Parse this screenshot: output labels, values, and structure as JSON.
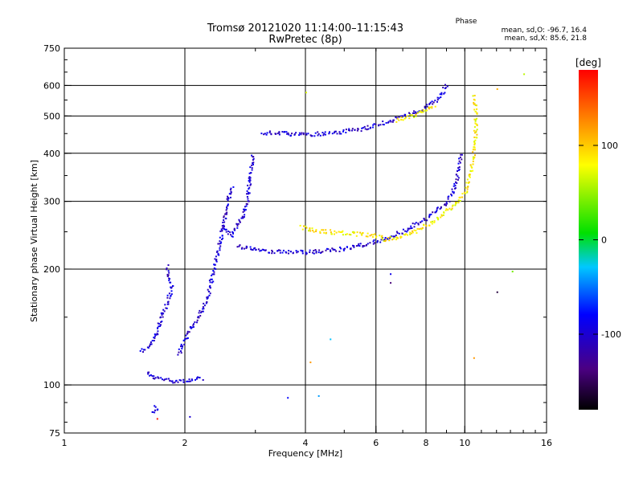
{
  "chart_data": {
    "type": "scatter",
    "title": "Tromsø 20121020 11:14:00–11:15:43",
    "subtitle": "RwPretec (8p)",
    "xlabel": "Frequency [MHz]",
    "ylabel": "Stationary phase Virtual Height [km]",
    "xscale": "log",
    "yscale": "log",
    "xlim": [
      1,
      16
    ],
    "ylim": [
      75,
      750
    ],
    "xticks": [
      1,
      2,
      4,
      6,
      8,
      10,
      16
    ],
    "yticks": [
      75,
      100,
      200,
      300,
      400,
      500,
      600,
      750
    ],
    "grid_x": [
      2,
      4,
      6,
      8,
      10
    ],
    "grid_y": [
      100,
      200,
      300,
      400,
      500,
      600
    ],
    "phase_stats": {
      "heading": "Phase",
      "o_line": "mean, sd,O: -96.7, 16.4",
      "x_line": "mean, sd,X:  85.6, 21.8"
    },
    "colorbar": {
      "label": "[deg]",
      "range": [
        -180,
        180
      ],
      "ticks": [
        100,
        0,
        -100
      ]
    },
    "traces": [
      {
        "mode": "O",
        "phase": -100,
        "points": [
          [
            1.65,
            85
          ],
          [
            1.68,
            88
          ],
          [
            1.72,
            86
          ]
        ]
      },
      {
        "mode": "O",
        "phase": -100,
        "points": [
          [
            1.6,
            108
          ],
          [
            1.65,
            105
          ],
          [
            1.75,
            104
          ],
          [
            1.85,
            103
          ],
          [
            1.95,
            103
          ],
          [
            2.05,
            103
          ],
          [
            2.15,
            104
          ],
          [
            2.22,
            104
          ]
        ]
      },
      {
        "mode": "O",
        "phase": -100,
        "points": [
          [
            1.55,
            123
          ],
          [
            1.62,
            126
          ],
          [
            1.68,
            135
          ],
          [
            1.72,
            145
          ],
          [
            1.78,
            160
          ],
          [
            1.82,
            170
          ],
          [
            1.85,
            180
          ],
          [
            1.82,
            190
          ],
          [
            1.8,
            205
          ]
        ]
      },
      {
        "mode": "O",
        "phase": -100,
        "points": [
          [
            1.92,
            120
          ],
          [
            1.98,
            130
          ],
          [
            2.05,
            140
          ],
          [
            2.15,
            150
          ],
          [
            2.25,
            165
          ],
          [
            2.3,
            180
          ],
          [
            2.35,
            200
          ],
          [
            2.4,
            220
          ],
          [
            2.45,
            240
          ],
          [
            2.5,
            270
          ],
          [
            2.55,
            300
          ],
          [
            2.6,
            320
          ],
          [
            2.62,
            330
          ]
        ]
      },
      {
        "mode": "O",
        "phase": -100,
        "points": [
          [
            2.5,
            260
          ],
          [
            2.55,
            250
          ],
          [
            2.6,
            245
          ],
          [
            2.75,
            270
          ],
          [
            2.85,
            300
          ],
          [
            2.9,
            350
          ],
          [
            2.95,
            400
          ]
        ]
      },
      {
        "mode": "O",
        "phase": -100,
        "points": [
          [
            2.7,
            230
          ],
          [
            2.9,
            228
          ],
          [
            3.2,
            224
          ],
          [
            3.6,
            222
          ],
          [
            4.0,
            222
          ],
          [
            4.5,
            224
          ],
          [
            5.0,
            227
          ],
          [
            5.5,
            232
          ],
          [
            6.0,
            237
          ],
          [
            6.5,
            244
          ],
          [
            7.0,
            252
          ],
          [
            7.5,
            262
          ],
          [
            8.0,
            272
          ],
          [
            8.5,
            285
          ],
          [
            9.0,
            300
          ],
          [
            9.3,
            320
          ],
          [
            9.5,
            345
          ],
          [
            9.65,
            370
          ],
          [
            9.75,
            400
          ]
        ]
      },
      {
        "mode": "O",
        "phase": -100,
        "points": [
          [
            3.1,
            455
          ],
          [
            3.5,
            452
          ],
          [
            4.0,
            450
          ],
          [
            4.5,
            452
          ],
          [
            5.0,
            458
          ],
          [
            5.5,
            465
          ],
          [
            6.0,
            475
          ],
          [
            6.5,
            488
          ],
          [
            7.0,
            500
          ],
          [
            7.5,
            515
          ],
          [
            8.0,
            530
          ],
          [
            8.5,
            555
          ],
          [
            8.8,
            580
          ],
          [
            9.0,
            610
          ]
        ]
      },
      {
        "mode": "X",
        "phase": 85,
        "points": [
          [
            3.9,
            258
          ],
          [
            4.3,
            252
          ],
          [
            4.8,
            250
          ],
          [
            5.3,
            248
          ],
          [
            5.8,
            246
          ],
          [
            6.3,
            243
          ]
        ]
      },
      {
        "mode": "X",
        "phase": 85,
        "points": [
          [
            6.3,
            240
          ],
          [
            7.0,
            245
          ],
          [
            7.5,
            252
          ],
          [
            8.0,
            262
          ],
          [
            8.5,
            272
          ],
          [
            9.0,
            285
          ],
          [
            9.5,
            300
          ],
          [
            10.0,
            320
          ],
          [
            10.3,
            360
          ],
          [
            10.5,
            400
          ],
          [
            10.6,
            450
          ],
          [
            10.6,
            500
          ],
          [
            10.55,
            540
          ],
          [
            10.5,
            570
          ]
        ]
      },
      {
        "mode": "X",
        "phase": 85,
        "points": [
          [
            6.7,
            490
          ],
          [
            7.0,
            495
          ],
          [
            7.5,
            505
          ],
          [
            8.0,
            520
          ],
          [
            8.4,
            535
          ]
        ]
      }
    ],
    "stray_points": [
      {
        "x": 1.7,
        "y": 82,
        "phase": 170
      },
      {
        "x": 2.05,
        "y": 83,
        "phase": -100
      },
      {
        "x": 3.6,
        "y": 93,
        "phase": -80
      },
      {
        "x": 4.3,
        "y": 94,
        "phase": -40
      },
      {
        "x": 4.1,
        "y": 115,
        "phase": 120
      },
      {
        "x": 4.6,
        "y": 132,
        "phase": -30
      },
      {
        "x": 6.5,
        "y": 185,
        "phase": -140
      },
      {
        "x": 6.5,
        "y": 195,
        "phase": -90
      },
      {
        "x": 10.5,
        "y": 118,
        "phase": 120
      },
      {
        "x": 12.0,
        "y": 175,
        "phase": -160
      },
      {
        "x": 13.1,
        "y": 198,
        "phase": 40
      },
      {
        "x": 14.0,
        "y": 645,
        "phase": 60
      },
      {
        "x": 12.0,
        "y": 590,
        "phase": 110
      },
      {
        "x": 4.0,
        "y": 578,
        "phase": 70
      }
    ]
  }
}
